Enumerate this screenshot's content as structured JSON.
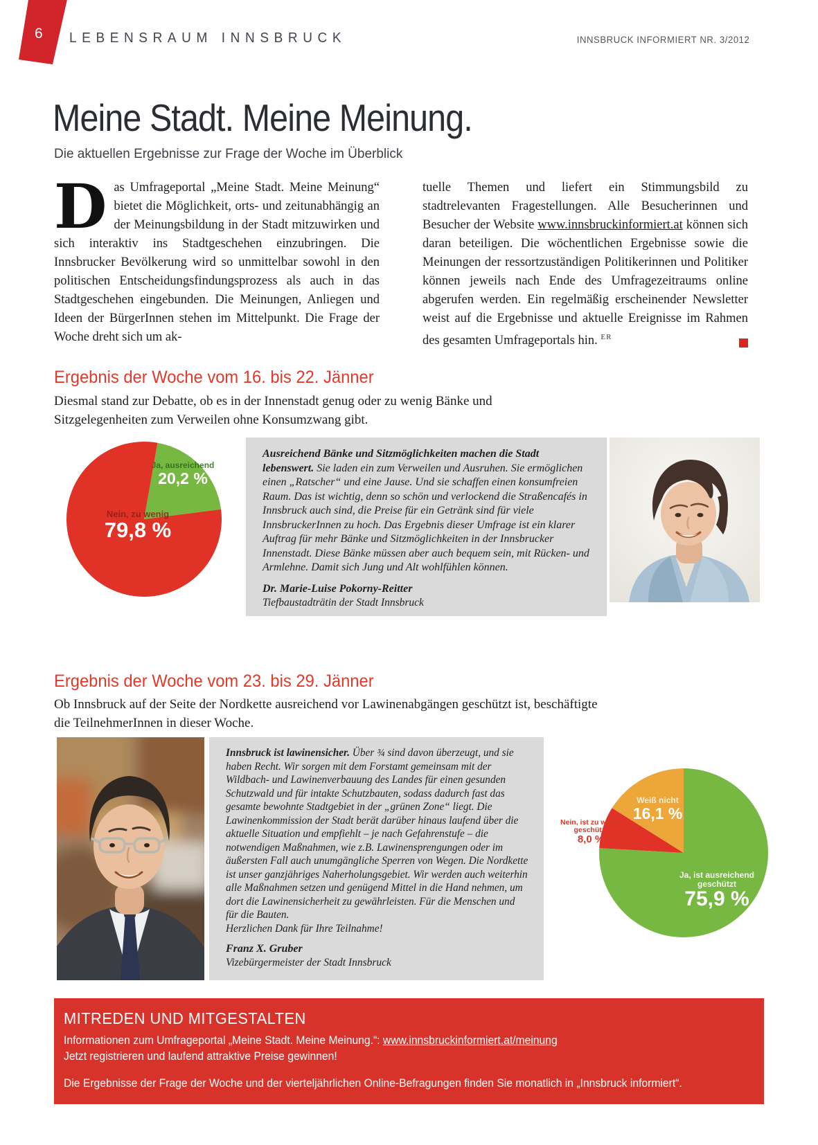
{
  "header": {
    "page_number": "6",
    "section_title": "LEBENSRAUM INNSBRUCK",
    "issue_info": "INNSBRUCK INFORMIERT NR. 3/2012"
  },
  "article": {
    "title": "Meine Stadt. Meine Meinung.",
    "subtitle": "Die aktuellen Ergebnisse zur Frage der Woche im Überblick",
    "intro_dropcap": "D",
    "intro_col_left": "as Umfrageportal „Meine Stadt. Meine Meinung“ bietet die Möglichkeit, orts- und zeitunabhängig an der Meinungsbildung in der Stadt mitzuwirken und sich interaktiv ins Stadtgeschehen einzubringen. Die Innsbrucker Bevölkerung wird so unmittelbar sowohl in den politischen Entscheidungsfindungsprozess als auch in das Stadtgeschehen eingebunden. Die Meinungen, Anliegen und Ideen der BürgerInnen stehen im Mittelpunkt. Die Frage der Woche dreht sich um ak-",
    "intro_col_right_before_link": "tuelle Themen und liefert ein Stimmungsbild zu stadtrelevanten Fragestellungen. Alle Besucherinnen und Besucher der Website",
    "intro_link": "www.innsbruckinformiert.at",
    "intro_col_right_after_link": "können sich daran beteiligen. Die wöchentlichen Ergebnisse sowie die Meinungen der ressortzuständigen Politikerinnen und Politiker können jeweils nach Ende des Umfragezeitraums online abgerufen werden. Ein regelmäßig erscheinender Newsletter weist auf die Ergebnisse und aktuelle Ereignisse im Rahmen des gesamten Umfrageportals hin.",
    "intro_author_initials": "ER"
  },
  "week1": {
    "heading": "Ergebnis der Woche vom 16. bis 22. Jänner",
    "intro": "Diesmal stand zur Debatte, ob es in der Innenstadt genug oder zu wenig Bänke und Sitzgelegenheiten zum Verweilen ohne Konsumzwang gibt.",
    "quote_lead": "Ausreichend Bänke und Sitzmöglichkeiten machen die Stadt lebenswert.",
    "quote_body": "Sie laden ein zum Verweilen und Ausruhen. Sie ermöglichen einen „Ratscher“ und eine Jause. Und sie schaffen einen konsumfreien Raum. Das ist wichtig, denn so schön und verlockend die Straßencafés in Innsbruck auch sind, die Preise für ein Getränk sind für viele InnsbruckerInnen zu hoch. Das Ergebnis dieser Umfrage ist ein klarer Auftrag für mehr Bänke und Sitzmöglichkeiten in der Innsbrucker Innenstadt. Diese Bänke müssen aber auch bequem sein, mit Rücken- und Armlehne. Damit sich Jung und Alt wohlfühlen können.",
    "author": "Dr. Marie-Luise Pokorny-Reitter",
    "author_role": "Tiefbaustadträtin der Stadt Innsbruck",
    "photo_alt": "Porträtfoto Dr. Marie-Luise Pokorny-Reitter"
  },
  "week2": {
    "heading": "Ergebnis der Woche vom 23. bis 29. Jänner",
    "intro": "Ob Innsbruck auf der Seite der Nordkette ausreichend vor Lawinenabgängen geschützt ist, beschäftigte die TeilnehmerInnen in dieser Woche.",
    "quote_lead": "Innsbruck ist lawinensicher.",
    "quote_body": "Über ¾ sind davon überzeugt, und sie haben Recht. Wir sorgen mit dem Forstamt gemeinsam mit der Wildbach- und Lawinenverbauung des Landes für einen gesunden Schutzwald und für intakte Schutzbauten, sodass dadurch fast das gesamte bewohnte Stadtgebiet in der „grünen Zone“ liegt. Die Lawinenkommission der Stadt berät darüber hinaus laufend über die aktuelle Situation und empfiehlt – je nach Gefahrenstufe – die notwendigen Maßnahmen, wie z.B. Lawinensprengungen oder im äußersten Fall auch unumgängliche Sperren von Wegen. Die Nordkette ist unser ganzjähriges Naherholungsgebiet. Wir werden auch weiterhin alle Maßnahmen setzen und genügend Mittel in die Hand nehmen, um dort die Lawinensicherheit zu gewährleisten. Für die Menschen und für die Bauten.",
    "quote_thanks": "Herzlichen Dank für Ihre Teilnahme!",
    "author": "Franz X. Gruber",
    "author_role": "Vizebürgermeister der Stadt Innsbruck",
    "photo_alt": "Porträtfoto Franz X. Gruber"
  },
  "footer": {
    "heading": "MITREDEN UND MITGESTALTEN",
    "info_label": "Informationen zum Umfrageportal „Meine Stadt. Meine Meinung.“:",
    "info_link": "www.innsbruckinformiert.at/meinung",
    "register_line": "Jetzt registrieren und laufend attraktive Preise gewinnen!",
    "results_line": "Die Ergebnisse der Frage der Woche und der vierteljährlichen Online-Befragungen finden Sie monatlich in „Innsbruck informiert“."
  },
  "colors": {
    "accent_red": "#d8332b",
    "heading_red": "#e13a2a",
    "pie_red": "#e03227",
    "pie_green": "#77b843",
    "pie_orange": "#eda63a",
    "quote_box_gray": "#dadada"
  },
  "chart_data": [
    {
      "type": "pie",
      "question_period": "16.–22. Jänner",
      "labels_position": "inside",
      "start_angle_deg": 10,
      "slices": [
        {
          "label": "Ja, ausreichend",
          "value": 20.2,
          "display": "20,2 %",
          "color": "#77b843"
        },
        {
          "label": "Nein, zu wenig",
          "value": 79.8,
          "display": "79,8 %",
          "color": "#e03227"
        }
      ]
    },
    {
      "type": "pie",
      "question_period": "23.–29. Jänner",
      "labels_position": "inside-and-outside",
      "start_angle_deg": 0,
      "slices": [
        {
          "label": "Ja, ist ausreichend geschützt",
          "value": 75.9,
          "display": "75,9 %",
          "color": "#77b843"
        },
        {
          "label": "Nein, ist zu wenig geschützt",
          "value": 8.0,
          "display": "8,0 %",
          "color": "#e03227"
        },
        {
          "label": "Weiß nicht",
          "value": 16.1,
          "display": "16,1 %",
          "color": "#eda63a"
        }
      ]
    }
  ]
}
